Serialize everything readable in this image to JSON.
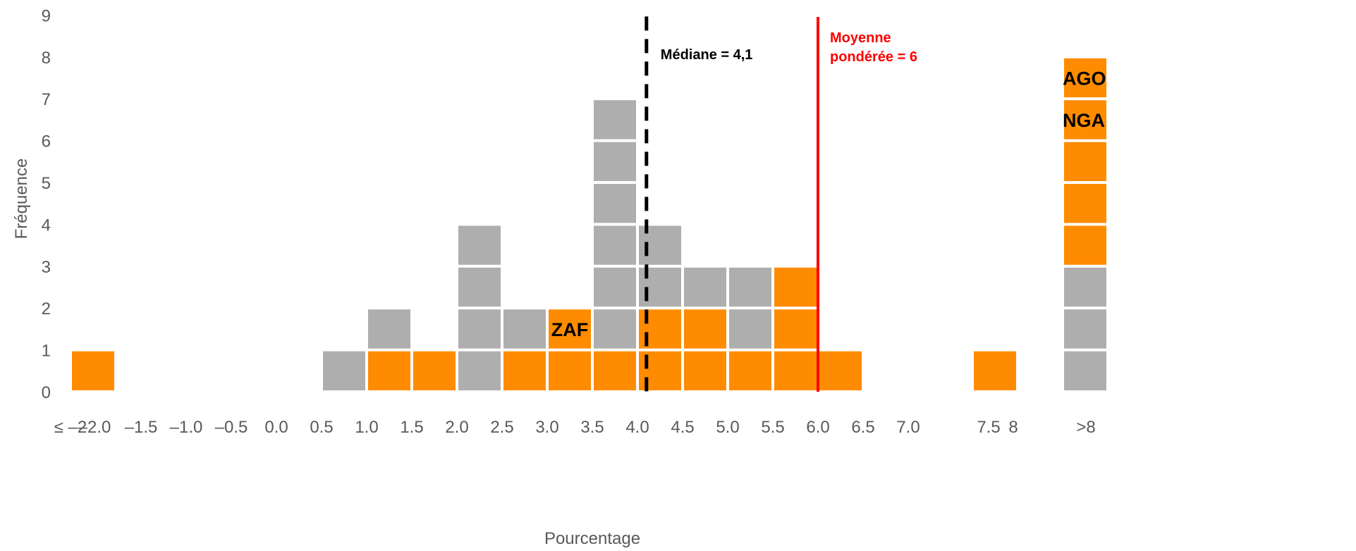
{
  "chart_data": {
    "type": "bar",
    "subtype": "stacked dot-histogram (one square per country)",
    "ylabel": "Fréquence",
    "xlabel": "Pourcentage",
    "ylim": [
      0,
      9
    ],
    "yticks": [
      "0",
      "1",
      "2",
      "3",
      "4",
      "5",
      "6",
      "7",
      "8",
      "9"
    ],
    "xtick_labels": [
      "≤ –2",
      "–2.0",
      "–1.5",
      "–1.0",
      "–0.5",
      "0.0",
      "0.5",
      "1.0",
      "1.5",
      "2.0",
      "2.5",
      "3.0",
      "3.5",
      "4.0",
      "4.5",
      "5.0",
      "5.5",
      "6.0",
      "6.5",
      "7.0",
      "7.5",
      "8",
      ">8"
    ],
    "legend": false,
    "grid": false,
    "colors": {
      "highlight": "#FF8C00",
      "other": "#AEAEAE",
      "median_line": "#000000",
      "mean_line": "#FF0000"
    },
    "bins": [
      {
        "range": "≤ –2",
        "stack": [
          "orange"
        ]
      },
      {
        "range": "0.5–1.0",
        "stack": [
          "gray"
        ]
      },
      {
        "range": "1.0–1.5",
        "stack": [
          "orange",
          "gray"
        ]
      },
      {
        "range": "1.5–2.0",
        "stack": [
          "orange"
        ]
      },
      {
        "range": "2.0–2.5",
        "stack": [
          "gray",
          "gray",
          "gray",
          "gray"
        ]
      },
      {
        "range": "2.5–3.0",
        "stack": [
          "orange",
          "gray"
        ]
      },
      {
        "range": "3.0–3.5",
        "stack": [
          "orange",
          "orange"
        ]
      },
      {
        "range": "3.5–4.0",
        "stack": [
          "orange",
          "gray",
          "gray",
          "gray",
          "gray",
          "gray",
          "gray"
        ]
      },
      {
        "range": "4.0–4.5",
        "stack": [
          "orange",
          "orange",
          "gray",
          "gray"
        ]
      },
      {
        "range": "4.5–5.0",
        "stack": [
          "orange",
          "orange",
          "gray"
        ]
      },
      {
        "range": "5.0–5.5",
        "stack": [
          "orange",
          "gray",
          "gray"
        ]
      },
      {
        "range": "5.5–6.0",
        "stack": [
          "orange",
          "orange",
          "orange"
        ]
      },
      {
        "range": "6.0–6.5",
        "stack": [
          "orange"
        ]
      },
      {
        "range": "7.5–8",
        "stack": [
          "orange"
        ]
      },
      {
        "range": ">8",
        "stack": [
          "gray",
          "gray",
          "gray",
          "orange",
          "orange",
          "orange",
          "orange",
          "orange"
        ]
      }
    ],
    "annotations": [
      {
        "text": "ZAF",
        "bin": "3.0–3.5",
        "level": 2
      },
      {
        "text": "AGO",
        "bin": ">8",
        "level": 8
      },
      {
        "text": "NGA",
        "bin": ">8",
        "level": 7
      }
    ],
    "reference_lines": [
      {
        "label": "Médiane = 4,1",
        "value": 4.1,
        "style": "dashed"
      },
      {
        "label_lines": [
          "Moyenne",
          "pondérée = 6"
        ],
        "value": 6.0,
        "style": "solid"
      }
    ]
  }
}
